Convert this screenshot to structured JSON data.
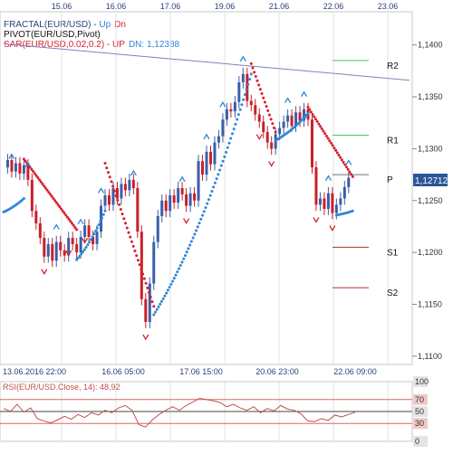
{
  "indicators": {
    "fractal": {
      "label": "FRACTAL(EUR/USD) - ",
      "up": "Up",
      "dn": "Dn"
    },
    "pivot": {
      "label": "PIVOT(EUR/USD,Pivot)"
    },
    "sar": {
      "label": "SAR(EUR/USD,0.02,0.2) - ",
      "up": "UP",
      "dn": "DN: 1,12388"
    }
  },
  "top_dates": [
    "15.06",
    "16.06",
    "17.06",
    "19.06",
    "21.06",
    "22.06",
    "23.06"
  ],
  "bottom_dates": [
    "13.06.2016 22:00",
    "16.06 05:00",
    "17.06 15:00",
    "20.06 23:00",
    "22.06 09:00"
  ],
  "price_axis": [
    "1,1400",
    "1,1350",
    "1,1300",
    "1,1250",
    "1,1200",
    "1,1150",
    "1,1100"
  ],
  "current_price": "1,12712",
  "pivot_labels": [
    "R2",
    "R1",
    "P",
    "S1",
    "S2"
  ],
  "rsi": {
    "label": "RSI(EUR/USD.Close, 14): 48,92",
    "axis": [
      "100",
      "70",
      "50",
      "30",
      "0"
    ]
  },
  "colors": {
    "up_candle": "#3a5fa8",
    "down_candle": "#c8202a",
    "sar_up": "#2e86d6",
    "sar_down": "#d81e28",
    "r_levels": "#44cc44",
    "s_levels": "#b03030",
    "pivot_line": "#707070",
    "trendline": "#8080b8",
    "rsi_line": "#c0504d",
    "price_badge": "#2b5797"
  },
  "chart_data": {
    "type": "candlestick",
    "y_range": [
      1.1092,
      1.1432
    ],
    "x_range": [
      0,
      100
    ],
    "pivot_levels": {
      "R2": 1.1385,
      "R1": 1.1313,
      "P": 1.1275,
      "S1": 1.1205,
      "S2": 1.1166
    },
    "trendline": [
      [
        0,
        1.1401
      ],
      [
        100,
        1.1366
      ]
    ],
    "price_path": [
      [
        0,
        1.1282
      ],
      [
        1,
        1.1289
      ],
      [
        2,
        1.1278
      ],
      [
        3,
        1.1286
      ],
      [
        4,
        1.1276
      ],
      [
        5,
        1.1284
      ],
      [
        6,
        1.127
      ],
      [
        7,
        1.124
      ],
      [
        8,
        1.1228
      ],
      [
        9,
        1.1214
      ],
      [
        10,
        1.1196
      ],
      [
        11,
        1.1208
      ],
      [
        12,
        1.1192
      ],
      [
        13,
        1.121
      ],
      [
        14,
        1.1202
      ],
      [
        15,
        1.1197
      ],
      [
        16,
        1.1214
      ],
      [
        17,
        1.1208
      ],
      [
        18,
        1.12
      ],
      [
        19,
        1.1215
      ],
      [
        20,
        1.1226
      ],
      [
        21,
        1.1215
      ],
      [
        22,
        1.1208
      ],
      [
        23,
        1.122
      ],
      [
        24,
        1.1245
      ],
      [
        25,
        1.1255
      ],
      [
        26,
        1.1246
      ],
      [
        27,
        1.1262
      ],
      [
        28,
        1.1252
      ],
      [
        29,
        1.1266
      ],
      [
        30,
        1.126
      ],
      [
        31,
        1.127
      ],
      [
        32,
        1.1262
      ],
      [
        33,
        1.122
      ],
      [
        34,
        1.1155
      ],
      [
        35,
        1.1133
      ],
      [
        36,
        1.117
      ],
      [
        37,
        1.121
      ],
      [
        38,
        1.1235
      ],
      [
        39,
        1.125
      ],
      [
        40,
        1.124
      ],
      [
        41,
        1.1255
      ],
      [
        42,
        1.1248
      ],
      [
        43,
        1.1262
      ],
      [
        44,
        1.1256
      ],
      [
        45,
        1.1245
      ],
      [
        46,
        1.1257
      ],
      [
        47,
        1.125
      ],
      [
        48,
        1.1288
      ],
      [
        49,
        1.1275
      ],
      [
        50,
        1.1297
      ],
      [
        51,
        1.1285
      ],
      [
        52,
        1.1306
      ],
      [
        53,
        1.1312
      ],
      [
        54,
        1.1328
      ],
      [
        55,
        1.1338
      ],
      [
        56,
        1.1336
      ],
      [
        57,
        1.1345
      ],
      [
        58,
        1.1364
      ],
      [
        59,
        1.1372
      ],
      [
        60,
        1.1346
      ],
      [
        61,
        1.1342
      ],
      [
        62,
        1.1333
      ],
      [
        63,
        1.1326
      ],
      [
        64,
        1.1316
      ],
      [
        65,
        1.1306
      ],
      [
        66,
        1.13
      ],
      [
        67,
        1.1314
      ],
      [
        68,
        1.132
      ],
      [
        69,
        1.1326
      ],
      [
        70,
        1.1332
      ],
      [
        71,
        1.1322
      ],
      [
        72,
        1.1335
      ],
      [
        73,
        1.1327
      ],
      [
        74,
        1.1338
      ],
      [
        75,
        1.1328
      ],
      [
        76,
        1.1282
      ],
      [
        77,
        1.1246
      ],
      [
        78,
        1.1252
      ],
      [
        79,
        1.1242
      ],
      [
        80,
        1.1257
      ],
      [
        81,
        1.1238
      ],
      [
        82,
        1.1246
      ],
      [
        83,
        1.1252
      ],
      [
        84,
        1.1263
      ],
      [
        85,
        1.1272
      ]
    ],
    "sar_segments": [
      {
        "trend": "up",
        "from": 0,
        "to": 5,
        "start": 1.1239,
        "end": 1.1252
      },
      {
        "trend": "down",
        "from": 5,
        "to": 18,
        "start": 1.129,
        "end": 1.1222
      },
      {
        "trend": "up",
        "from": 18,
        "to": 25,
        "start": 1.1193,
        "end": 1.124
      },
      {
        "trend": "down",
        "from": 25,
        "to": 37,
        "start": 1.1286,
        "end": 1.1148
      },
      {
        "trend": "up",
        "from": 37,
        "to": 61,
        "start": 1.114,
        "end": 1.1372
      },
      {
        "trend": "down",
        "from": 61,
        "to": 67,
        "start": 1.1382,
        "end": 1.1316
      },
      {
        "trend": "up",
        "from": 67,
        "to": 75,
        "start": 1.1308,
        "end": 1.1334
      },
      {
        "trend": "down",
        "from": 75,
        "to": 86,
        "start": 1.134,
        "end": 1.1273
      },
      {
        "trend": "up",
        "from": 82,
        "to": 86,
        "start": 1.1236,
        "end": 1.124
      }
    ],
    "fractals_up": [
      2,
      6,
      13,
      19,
      24,
      32,
      44,
      50,
      54,
      59,
      70,
      74,
      80,
      85
    ],
    "fractals_down": [
      10,
      16,
      20,
      35,
      45,
      63,
      66,
      77,
      81
    ],
    "rsi": {
      "y_range": [
        0,
        100
      ],
      "levels": [
        70,
        50,
        30
      ],
      "values": [
        55,
        50,
        62,
        49,
        56,
        38,
        34,
        31,
        36,
        42,
        37,
        45,
        40,
        48,
        44,
        52,
        48,
        56,
        60,
        52,
        28,
        24,
        36,
        45,
        52,
        58,
        52,
        60,
        66,
        72,
        70,
        68,
        65,
        58,
        62,
        56,
        52,
        58,
        48,
        55,
        51,
        60,
        54,
        52,
        46,
        34,
        33,
        38,
        35,
        44,
        41,
        45,
        49
      ]
    }
  }
}
